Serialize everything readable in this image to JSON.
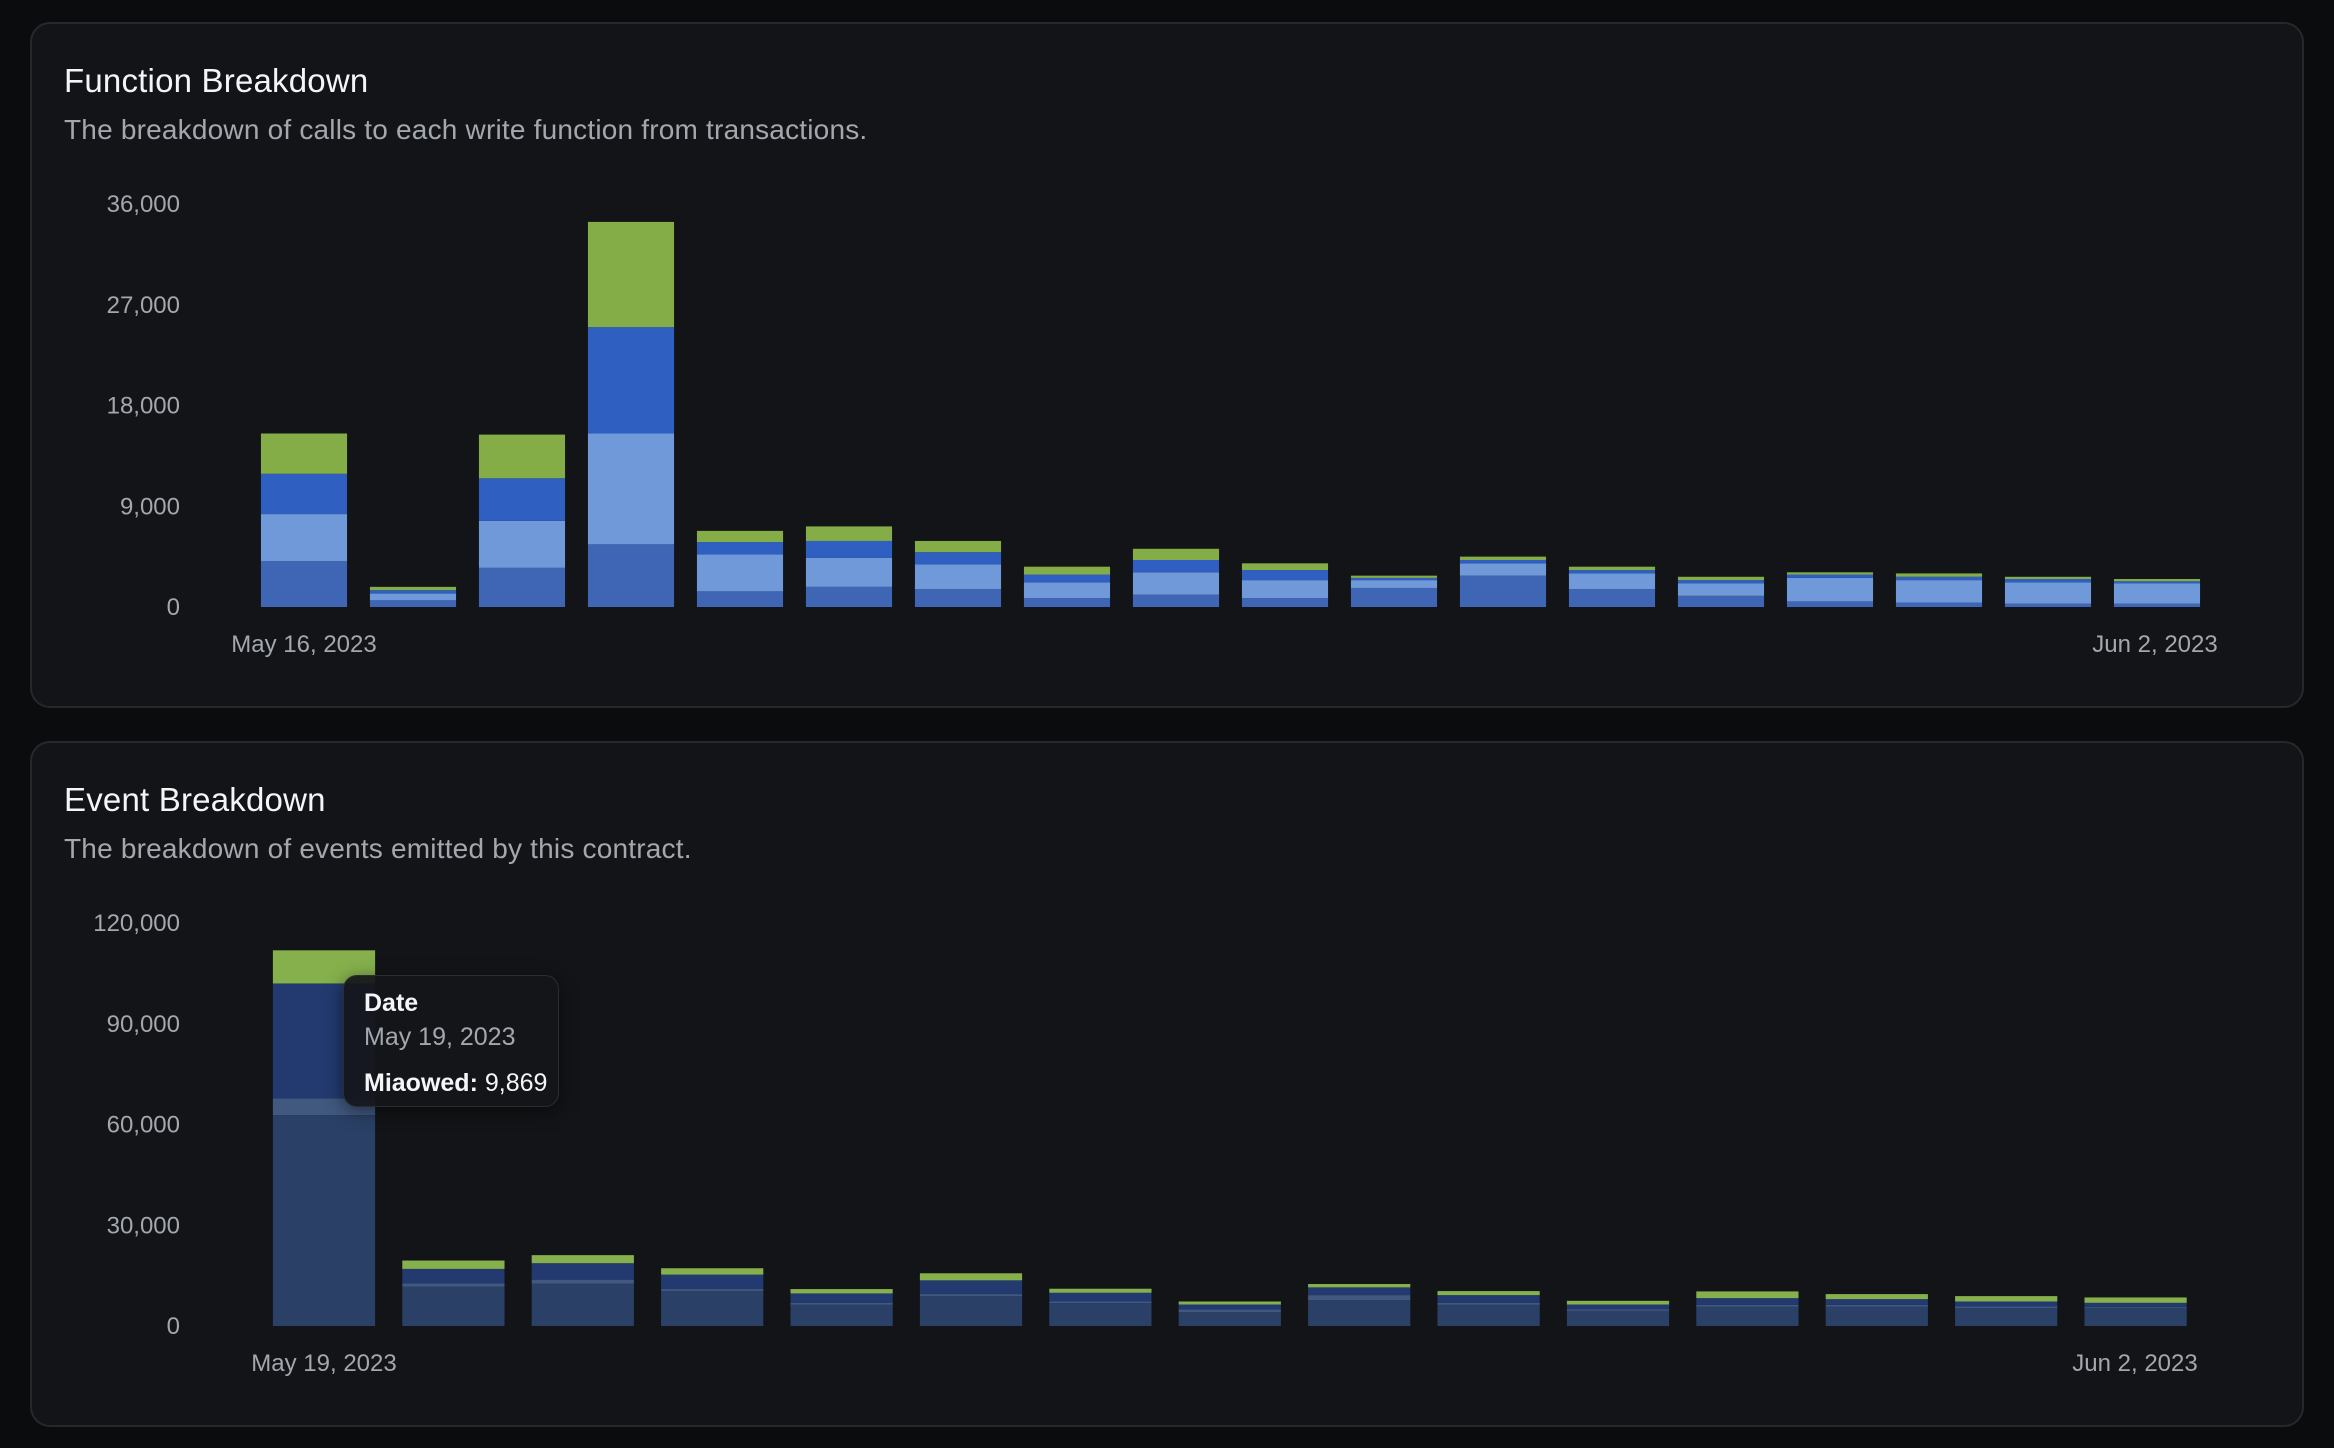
{
  "function_breakdown": {
    "title": "Function Breakdown",
    "subtitle": "The breakdown of calls to each write function from transactions."
  },
  "event_breakdown": {
    "title": "Event Breakdown",
    "subtitle": "The breakdown of events emitted by this contract.",
    "tooltip": {
      "heading": "Date",
      "date": "May 19, 2023",
      "series_label": "Miaowed:",
      "value": "9,869"
    }
  },
  "chart_data": [
    {
      "type": "bar",
      "stacked": true,
      "title": "Function Breakdown",
      "xlabel": "",
      "ylabel": "",
      "ylim": [
        0,
        36000
      ],
      "yticks": [
        0,
        9000,
        18000,
        27000,
        36000
      ],
      "ytick_labels": [
        "0",
        "9,000",
        "18,000",
        "27,000",
        "36,000"
      ],
      "x_start_label": "May 16, 2023",
      "x_end_label": "Jun 2, 2023",
      "grid": false,
      "legend": "none",
      "colors": [
        "#3e66b4",
        "#6f99d8",
        "#2f5fc0",
        "#84ad48"
      ],
      "series": [
        {
          "values": [
            4100,
            600,
            3500,
            5600,
            1400,
            1800,
            1600,
            800,
            1100,
            800,
            1700,
            2800,
            1600,
            1000,
            500,
            400,
            300,
            300
          ]
        },
        {
          "values": [
            4200,
            600,
            4200,
            9900,
            3300,
            2600,
            2200,
            1400,
            2000,
            1600,
            700,
            1100,
            1400,
            1100,
            2100,
            2000,
            1900,
            1800
          ]
        },
        {
          "values": [
            3600,
            300,
            3800,
            9500,
            1100,
            1500,
            1100,
            700,
            1100,
            900,
            200,
            300,
            300,
            300,
            300,
            300,
            300,
            200
          ]
        },
        {
          "values": [
            3600,
            300,
            3900,
            9400,
            1000,
            1300,
            1000,
            700,
            1000,
            600,
            200,
            300,
            300,
            300,
            200,
            300,
            200,
            200
          ]
        }
      ]
    },
    {
      "type": "bar",
      "stacked": true,
      "title": "Event Breakdown",
      "xlabel": "",
      "ylabel": "",
      "ylim": [
        0,
        120000
      ],
      "yticks": [
        0,
        30000,
        60000,
        90000,
        120000
      ],
      "ytick_labels": [
        "0",
        "30,000",
        "60,000",
        "90,000",
        "120,000"
      ],
      "x_start_label": "May 19, 2023",
      "x_end_label": "Jun 2, 2023",
      "grid": false,
      "legend": "none",
      "colors": [
        "#2b4066",
        "#41597f",
        "#223a70",
        "#86b04c"
      ],
      "series": [
        {
          "values": [
            62800,
            11700,
            12600,
            10400,
            6400,
            8900,
            6800,
            4100,
            7700,
            6300,
            4500,
            5800,
            5800,
            5300,
            5400
          ]
        },
        {
          "values": [
            5000,
            1000,
            1200,
            600,
            500,
            600,
            500,
            800,
            1500,
            600,
            500,
            500,
            500,
            500,
            300
          ]
        },
        {
          "values": [
            34200,
            4300,
            4900,
            4300,
            2800,
            4100,
            2600,
            1500,
            2300,
            2300,
            1400,
            2000,
            1700,
            1500,
            1200
          ]
        },
        {
          "values": [
            9869,
            2500,
            2400,
            1900,
            1300,
            2100,
            1200,
            900,
            1000,
            1200,
            1100,
            2000,
            1500,
            1600,
            1600
          ]
        }
      ]
    }
  ]
}
